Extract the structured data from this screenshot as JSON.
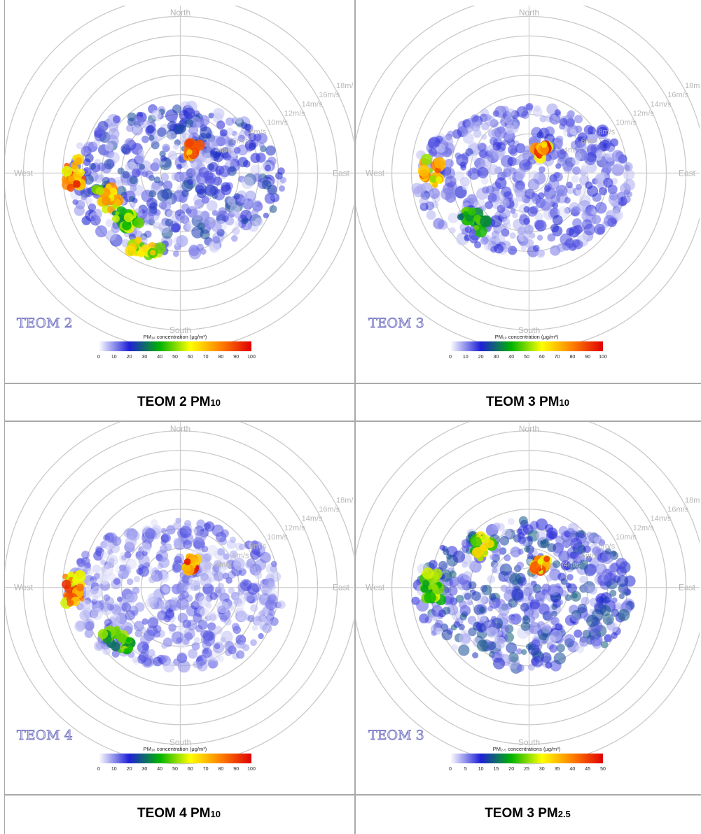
{
  "panels": [
    {
      "station": "TEOM 2",
      "legend_title": "PM₁₀ concentration (μg/m³)",
      "ticks": [
        "0",
        "10",
        "20",
        "30",
        "40",
        "50",
        "60",
        "70",
        "80",
        "90",
        "100"
      ],
      "caption_main": "TEOM 2 PM",
      "caption_sub": "10"
    },
    {
      "station": "TEOM 3",
      "legend_title": "PM₁₀ concentration (μg/m³)",
      "ticks": [
        "0",
        "10",
        "20",
        "30",
        "40",
        "50",
        "60",
        "70",
        "80",
        "90",
        "100"
      ],
      "caption_main": "TEOM 3 PM",
      "caption_sub": "10"
    },
    {
      "station": "TEOM 4",
      "legend_title": "PM₁₀ concentration (μg/m³)",
      "ticks": [
        "0",
        "10",
        "20",
        "30",
        "40",
        "50",
        "60",
        "70",
        "80",
        "90",
        "100"
      ],
      "caption_main": "TEOM 4 PM",
      "caption_sub": "10"
    },
    {
      "station": "TEOM 3",
      "legend_title": "PM₂.₅ concentrations (μg/m³)",
      "ticks": [
        "0",
        "5",
        "10",
        "15",
        "20",
        "25",
        "30",
        "35",
        "40",
        "45",
        "50"
      ],
      "caption_main": "TEOM 3 PM",
      "caption_sub": "2.5"
    }
  ],
  "chart_data": [
    {
      "type": "heatmap",
      "subtype": "polar pollution rose",
      "station": "TEOM 2",
      "pollutant": "PM10",
      "directions": [
        "North",
        "East",
        "South",
        "West"
      ],
      "speed_rings": [
        "2m/s",
        "4m/s",
        "6m/s",
        "8m/s",
        "10m/s",
        "12m/s",
        "14m/s",
        "16m/s",
        "18m/s"
      ],
      "color_scale": {
        "min": 0,
        "max": 100,
        "colors": [
          "#ffffff",
          "#1f1fd8",
          "#00b400",
          "#ffff00",
          "#ff8000",
          "#e00000"
        ]
      },
      "hotspots": [
        {
          "direction": "West",
          "speed_ms": 11,
          "level": 100
        },
        {
          "direction": "WSW",
          "speed_ms": 8,
          "level": 80
        },
        {
          "direction": "SW",
          "speed_ms": 8,
          "level": 60
        },
        {
          "direction": "NNE",
          "speed_ms": 3,
          "level": 100
        },
        {
          "direction": "SSW",
          "speed_ms": 10,
          "level": 75
        }
      ],
      "background_level": 15
    },
    {
      "type": "heatmap",
      "subtype": "polar pollution rose",
      "station": "TEOM 3",
      "pollutant": "PM10",
      "directions": [
        "North",
        "East",
        "South",
        "West"
      ],
      "speed_rings": [
        "2m/s",
        "4m/s",
        "6m/s",
        "8m/s",
        "10m/s",
        "12m/s",
        "14m/s",
        "16m/s",
        "18m/s"
      ],
      "color_scale": {
        "min": 0,
        "max": 100,
        "colors": [
          "#ffffff",
          "#1f1fd8",
          "#00b400",
          "#ffff00",
          "#ff8000",
          "#e00000"
        ]
      },
      "hotspots": [
        {
          "direction": "West",
          "speed_ms": 10,
          "level": 90
        },
        {
          "direction": "SW",
          "speed_ms": 8,
          "level": 50
        },
        {
          "direction": "NNE",
          "speed_ms": 3,
          "level": 100
        }
      ],
      "background_level": 12
    },
    {
      "type": "heatmap",
      "subtype": "polar pollution rose",
      "station": "TEOM 4",
      "pollutant": "PM10",
      "directions": [
        "North",
        "East",
        "South",
        "West"
      ],
      "speed_rings": [
        "2m/s",
        "4m/s",
        "6m/s",
        "8m/s",
        "10m/s",
        "12m/s",
        "14m/s",
        "16m/s",
        "18m/s"
      ],
      "color_scale": {
        "min": 0,
        "max": 100,
        "colors": [
          "#ffffff",
          "#1f1fd8",
          "#00b400",
          "#ffff00",
          "#ff8000",
          "#e00000"
        ]
      },
      "hotspots": [
        {
          "direction": "West",
          "speed_ms": 11,
          "level": 95
        },
        {
          "direction": "SW",
          "speed_ms": 9,
          "level": 55
        },
        {
          "direction": "NNE",
          "speed_ms": 3,
          "level": 100
        }
      ],
      "background_level": 10
    },
    {
      "type": "heatmap",
      "subtype": "polar pollution rose",
      "station": "TEOM 3",
      "pollutant": "PM2.5",
      "directions": [
        "North",
        "East",
        "South",
        "West"
      ],
      "speed_rings": [
        "2m/s",
        "4m/s",
        "6m/s",
        "8m/s",
        "10m/s",
        "12m/s",
        "14m/s",
        "16m/s",
        "18m/s"
      ],
      "color_scale": {
        "min": 0,
        "max": 50,
        "colors": [
          "#ffffff",
          "#1f1fd8",
          "#00b400",
          "#ffff00",
          "#ff8000",
          "#e00000"
        ]
      },
      "hotspots": [
        {
          "direction": "NW",
          "speed_ms": 7,
          "level": 35
        },
        {
          "direction": "NNE",
          "speed_ms": 3,
          "level": 50
        },
        {
          "direction": "West",
          "speed_ms": 10,
          "level": 30
        }
      ],
      "background_level": 8
    }
  ]
}
